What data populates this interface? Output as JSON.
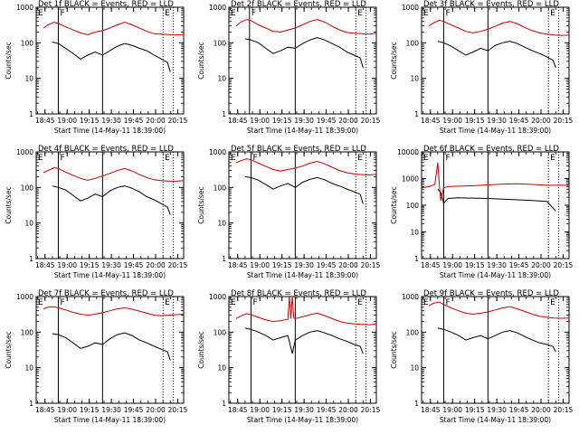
{
  "figure": {
    "x_tick_labels": [
      "18:45",
      "19:00",
      "19:15",
      "19:30",
      "19:45",
      "20:00",
      "20:15"
    ],
    "y_tick_labels": [
      "1",
      "10",
      "100",
      "1000",
      "10000"
    ],
    "xlabel": "Start Time (14-May-11 18:39:00)",
    "ylabel": "Counts/sec",
    "marker_letters": [
      "E",
      "F",
      "E"
    ]
  },
  "colors": {
    "events": "#000000",
    "lld": "#cc0000",
    "axes": "#000000",
    "background": "#ffffff"
  },
  "chart_data": [
    {
      "type": "line",
      "title": "Det 1f BLACK = Events, RED = LLD",
      "xlabel": "Start Time (14-May-11 18:39:00)",
      "ylabel": "Counts/sec",
      "x_unit": "minutes after 18:39:00",
      "y_scale": "log",
      "ylim": [
        1,
        1000
      ],
      "xlim": [
        0,
        100
      ],
      "grid": false,
      "vlines_solid": [
        15,
        45
      ],
      "vlines_dotted": [
        86,
        93
      ],
      "series": [
        {
          "name": "Events",
          "color": "#000000",
          "x": [
            11,
            15,
            20,
            25,
            30,
            35,
            40,
            45,
            50,
            55,
            60,
            65,
            70,
            75,
            80,
            85,
            89,
            91
          ],
          "y": [
            105,
            95,
            70,
            50,
            35,
            45,
            55,
            45,
            60,
            80,
            95,
            85,
            70,
            60,
            45,
            35,
            28,
            15
          ]
        },
        {
          "name": "LLD",
          "color": "#cc0000",
          "x": [
            5,
            8,
            12,
            15,
            20,
            25,
            30,
            35,
            40,
            45,
            50,
            55,
            60,
            65,
            70,
            75,
            80,
            85,
            90,
            95,
            100
          ],
          "y": [
            260,
            320,
            380,
            350,
            280,
            230,
            190,
            170,
            200,
            220,
            260,
            320,
            380,
            320,
            260,
            210,
            180,
            175,
            170,
            165,
            170
          ]
        }
      ]
    },
    {
      "type": "line",
      "title": "Det 2f BLACK = Events, RED = LLD",
      "xlabel": "Start Time (14-May-11 18:39:00)",
      "ylabel": "Counts/sec",
      "x_unit": "minutes after 18:39:00",
      "y_scale": "log",
      "ylim": [
        1,
        1000
      ],
      "xlim": [
        0,
        100
      ],
      "grid": false,
      "vlines_solid": [
        14,
        45
      ],
      "vlines_dotted": [
        86,
        93
      ],
      "series": [
        {
          "name": "Events",
          "color": "#000000",
          "x": [
            11,
            15,
            20,
            25,
            30,
            35,
            40,
            45,
            50,
            55,
            60,
            65,
            70,
            75,
            80,
            85,
            89,
            91
          ],
          "y": [
            130,
            120,
            100,
            70,
            50,
            60,
            75,
            70,
            95,
            120,
            140,
            120,
            95,
            75,
            55,
            45,
            38,
            20
          ]
        },
        {
          "name": "LLD",
          "color": "#cc0000",
          "x": [
            5,
            8,
            12,
            15,
            20,
            25,
            30,
            35,
            40,
            45,
            50,
            55,
            60,
            65,
            70,
            75,
            80,
            85,
            90,
            95,
            100
          ],
          "y": [
            300,
            380,
            450,
            420,
            320,
            260,
            210,
            200,
            230,
            260,
            320,
            400,
            450,
            380,
            290,
            230,
            195,
            185,
            180,
            175,
            185
          ]
        }
      ]
    },
    {
      "type": "line",
      "title": "Det 3f BLACK = Events, RED = LLD",
      "xlabel": "Start Time (14-May-11 18:39:00)",
      "ylabel": "Counts/sec",
      "x_unit": "minutes after 18:39:00",
      "y_scale": "log",
      "ylim": [
        1,
        1000
      ],
      "xlim": [
        0,
        100
      ],
      "grid": false,
      "vlines_solid": [
        15,
        45
      ],
      "vlines_dotted": [
        86,
        93
      ],
      "series": [
        {
          "name": "Events",
          "color": "#000000",
          "x": [
            11,
            15,
            20,
            25,
            30,
            35,
            40,
            45,
            50,
            55,
            60,
            65,
            70,
            75,
            80,
            85,
            89,
            91
          ],
          "y": [
            110,
            100,
            80,
            60,
            45,
            55,
            70,
            60,
            85,
            100,
            110,
            95,
            75,
            60,
            50,
            40,
            33,
            20
          ]
        },
        {
          "name": "LLD",
          "color": "#cc0000",
          "x": [
            5,
            8,
            12,
            15,
            20,
            25,
            30,
            35,
            40,
            45,
            50,
            55,
            60,
            65,
            70,
            75,
            80,
            85,
            90,
            95,
            100
          ],
          "y": [
            300,
            360,
            430,
            400,
            320,
            260,
            210,
            190,
            210,
            240,
            290,
            360,
            400,
            340,
            270,
            220,
            190,
            175,
            165,
            160,
            165
          ]
        }
      ]
    },
    {
      "type": "line",
      "title": "Det 4f BLACK = Events, RED = LLD",
      "xlabel": "Start Time (14-May-11 18:39:00)",
      "ylabel": "Counts/sec",
      "x_unit": "minutes after 18:39:00",
      "y_scale": "log",
      "ylim": [
        1,
        1000
      ],
      "xlim": [
        0,
        100
      ],
      "grid": false,
      "vlines_solid": [
        15,
        45
      ],
      "vlines_dotted": [
        86,
        93
      ],
      "series": [
        {
          "name": "Events",
          "color": "#000000",
          "x": [
            11,
            15,
            20,
            25,
            30,
            35,
            40,
            45,
            50,
            55,
            60,
            65,
            70,
            75,
            80,
            85,
            89,
            91
          ],
          "y": [
            110,
            100,
            85,
            60,
            42,
            50,
            65,
            55,
            80,
            100,
            110,
            95,
            75,
            55,
            45,
            35,
            28,
            17
          ]
        },
        {
          "name": "LLD",
          "color": "#cc0000",
          "x": [
            5,
            8,
            12,
            15,
            20,
            25,
            30,
            35,
            40,
            45,
            50,
            55,
            60,
            65,
            70,
            75,
            80,
            85,
            90,
            95,
            100
          ],
          "y": [
            260,
            300,
            360,
            340,
            270,
            220,
            180,
            160,
            180,
            210,
            250,
            300,
            340,
            290,
            230,
            190,
            165,
            155,
            150,
            150,
            155
          ]
        }
      ]
    },
    {
      "type": "line",
      "title": "Det 5f BLACK = Events, RED = LLD",
      "xlabel": "Start Time (14-May-11 18:39:00)",
      "ylabel": "Counts/sec",
      "x_unit": "minutes after 18:39:00",
      "y_scale": "log",
      "ylim": [
        1,
        1000
      ],
      "xlim": [
        0,
        100
      ],
      "grid": false,
      "vlines_solid": [
        15,
        45
      ],
      "vlines_dotted": [
        86,
        93
      ],
      "series": [
        {
          "name": "Events",
          "color": "#000000",
          "x": [
            11,
            15,
            20,
            25,
            30,
            35,
            40,
            45,
            50,
            55,
            60,
            65,
            70,
            75,
            80,
            85,
            89,
            91
          ],
          "y": [
            200,
            190,
            160,
            120,
            90,
            110,
            130,
            100,
            140,
            170,
            190,
            165,
            130,
            110,
            90,
            75,
            65,
            35
          ]
        },
        {
          "name": "LLD",
          "color": "#cc0000",
          "x": [
            5,
            8,
            12,
            15,
            20,
            25,
            30,
            35,
            40,
            45,
            50,
            55,
            60,
            65,
            70,
            75,
            80,
            85,
            90,
            95,
            100
          ],
          "y": [
            500,
            560,
            640,
            600,
            480,
            390,
            320,
            290,
            320,
            350,
            400,
            480,
            540,
            460,
            370,
            300,
            260,
            240,
            230,
            225,
            235
          ]
        }
      ]
    },
    {
      "type": "line",
      "title": "Det 6f BLACK = Events, RED = LLD",
      "xlabel": "Start Time (14-May-11 18:39:00)",
      "ylabel": "Counts/sec",
      "x_unit": "minutes after 18:39:00",
      "y_scale": "log",
      "ylim": [
        1,
        10000
      ],
      "xlim": [
        0,
        100
      ],
      "grid": false,
      "vlines_solid": [
        15,
        45
      ],
      "vlines_dotted": [
        86,
        93
      ],
      "series": [
        {
          "name": "Events",
          "color": "#000000",
          "x": [
            11,
            13,
            15,
            18,
            25,
            35,
            45,
            55,
            65,
            75,
            85,
            91
          ],
          "y": [
            400,
            300,
            120,
            180,
            190,
            185,
            180,
            170,
            160,
            150,
            140,
            60
          ]
        },
        {
          "name": "LLD",
          "color": "#cc0000",
          "x": [
            0,
            5,
            9,
            11,
            12,
            13,
            15,
            18,
            25,
            35,
            45,
            55,
            65,
            75,
            85,
            100
          ],
          "y": [
            450,
            500,
            600,
            4000,
            600,
            150,
            450,
            500,
            520,
            540,
            580,
            620,
            640,
            600,
            560,
            560
          ]
        }
      ]
    },
    {
      "type": "line",
      "title": "Det 7f BLACK = Events, RED = LLD",
      "xlabel": "Start Time (14-May-11 18:39:00)",
      "ylabel": "Counts/sec",
      "x_unit": "minutes after 18:39:00",
      "y_scale": "log",
      "ylim": [
        1,
        1000
      ],
      "xlim": [
        0,
        100
      ],
      "grid": false,
      "vlines_solid": [
        15,
        45
      ],
      "vlines_dotted": [
        86,
        93
      ],
      "series": [
        {
          "name": "Events",
          "color": "#000000",
          "x": [
            11,
            15,
            20,
            25,
            30,
            35,
            40,
            45,
            50,
            55,
            60,
            65,
            70,
            75,
            80,
            85,
            89,
            91
          ],
          "y": [
            90,
            85,
            70,
            50,
            35,
            40,
            50,
            45,
            65,
            85,
            95,
            80,
            60,
            50,
            40,
            33,
            28,
            16
          ]
        },
        {
          "name": "LLD",
          "color": "#cc0000",
          "x": [
            5,
            8,
            12,
            15,
            20,
            25,
            30,
            35,
            40,
            45,
            50,
            55,
            60,
            65,
            70,
            75,
            80,
            85,
            90,
            95,
            100
          ],
          "y": [
            450,
            500,
            520,
            480,
            420,
            360,
            320,
            300,
            320,
            350,
            400,
            450,
            480,
            440,
            390,
            340,
            300,
            290,
            300,
            310,
            320
          ]
        }
      ]
    },
    {
      "type": "line",
      "title": "Det 8f BLACK = Events, RED = LLD",
      "xlabel": "Start Time (14-May-11 18:39:00)",
      "ylabel": "Counts/sec",
      "x_unit": "minutes after 18:39:00",
      "y_scale": "log",
      "ylim": [
        1,
        1000
      ],
      "xlim": [
        0,
        100
      ],
      "grid": false,
      "vlines_solid": [
        15,
        45
      ],
      "vlines_dotted": [
        86,
        93
      ],
      "series": [
        {
          "name": "Events",
          "color": "#000000",
          "x": [
            11,
            15,
            20,
            25,
            30,
            35,
            40,
            43,
            45,
            50,
            55,
            60,
            65,
            70,
            75,
            80,
            85,
            89,
            91
          ],
          "y": [
            130,
            120,
            100,
            80,
            60,
            70,
            80,
            25,
            60,
            80,
            100,
            110,
            95,
            80,
            65,
            55,
            45,
            40,
            25
          ]
        },
        {
          "name": "LLD",
          "color": "#cc0000",
          "x": [
            5,
            8,
            12,
            15,
            20,
            25,
            30,
            35,
            40,
            41,
            42,
            43,
            44,
            45,
            50,
            55,
            60,
            65,
            70,
            75,
            80,
            85,
            90,
            95,
            100
          ],
          "y": [
            240,
            280,
            330,
            310,
            260,
            220,
            200,
            210,
            230,
            1000,
            240,
            1000,
            250,
            240,
            270,
            310,
            340,
            290,
            240,
            200,
            180,
            170,
            165,
            160,
            170
          ]
        }
      ]
    },
    {
      "type": "line",
      "title": "Det 9f BLACK = Events, RED = LLD",
      "xlabel": "Start Time (14-May-11 18:39:00)",
      "ylabel": "Counts/sec",
      "x_unit": "minutes after 18:39:00",
      "y_scale": "log",
      "ylim": [
        1,
        1000
      ],
      "xlim": [
        0,
        100
      ],
      "grid": false,
      "vlines_solid": [
        15,
        45
      ],
      "vlines_dotted": [
        86,
        93
      ],
      "series": [
        {
          "name": "Events",
          "color": "#000000",
          "x": [
            11,
            15,
            20,
            25,
            30,
            35,
            40,
            45,
            50,
            55,
            60,
            65,
            70,
            75,
            80,
            85,
            89,
            91
          ],
          "y": [
            130,
            120,
            100,
            80,
            60,
            70,
            80,
            65,
            80,
            100,
            110,
            95,
            75,
            60,
            50,
            45,
            40,
            28
          ]
        },
        {
          "name": "LLD",
          "color": "#cc0000",
          "x": [
            5,
            8,
            12,
            15,
            20,
            25,
            30,
            35,
            40,
            45,
            50,
            55,
            60,
            65,
            70,
            75,
            80,
            85,
            90,
            95,
            100
          ],
          "y": [
            550,
            650,
            700,
            600,
            480,
            400,
            340,
            320,
            340,
            370,
            420,
            480,
            520,
            450,
            380,
            320,
            280,
            260,
            250,
            245,
            250
          ]
        }
      ]
    }
  ]
}
